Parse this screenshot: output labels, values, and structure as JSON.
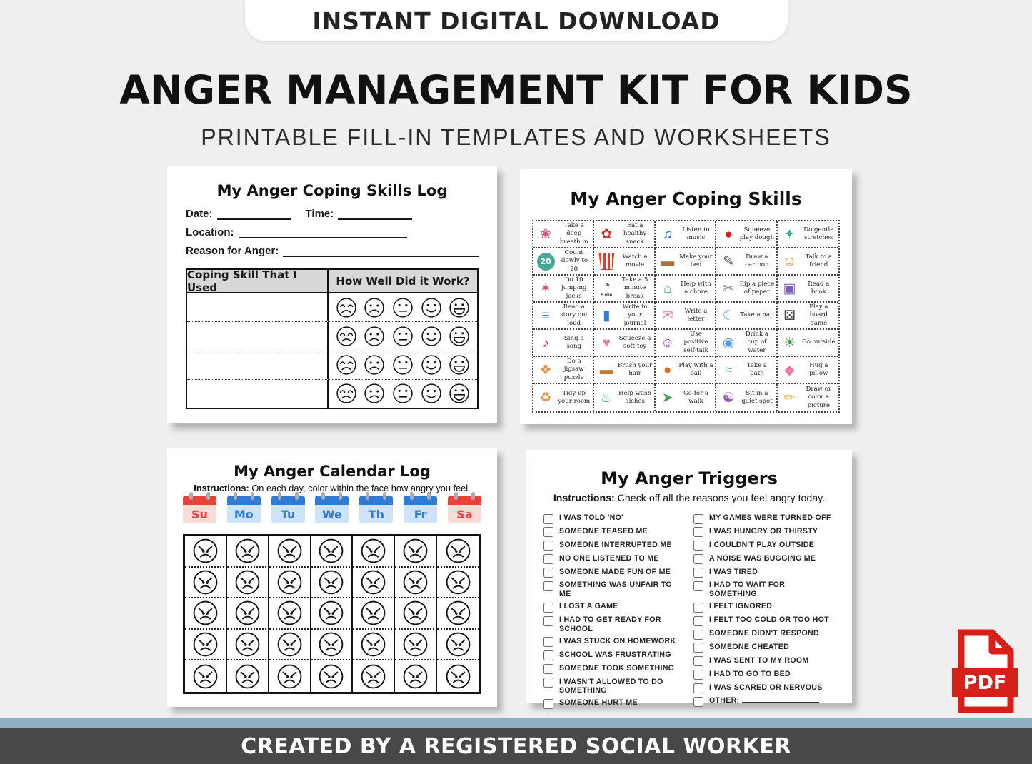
{
  "header": {
    "pill": "INSTANT DIGITAL DOWNLOAD",
    "title": "ANGER MANAGEMENT KIT FOR KIDS",
    "subtitle": "PRINTABLE FILL-IN TEMPLATES AND WORKSHEETS"
  },
  "footer": {
    "text": "CREATED BY A REGISTERED SOCIAL WORKER"
  },
  "pdf_badge": {
    "label": "PDF",
    "icon": "pdf-file-icon"
  },
  "colors": {
    "background": "#efefef",
    "pdf_red": "#d8201a",
    "teal": "#45a894",
    "calendar_red": "#e8423a",
    "calendar_red_light": "#fadbd8",
    "calendar_blue": "#2e7cd6",
    "calendar_blue_light": "#cfe3f8",
    "table_header_gray": "#d8d8d8",
    "footer_bar": "#8fafc4",
    "footer_bg": "#484848"
  },
  "coping_log": {
    "title": "My Anger Coping Skills Log",
    "date_label": "Date:",
    "time_label": "Time:",
    "location_label": "Location:",
    "reason_label": "Reason for Anger:",
    "table": {
      "col1_header": "Coping Skill That I Used",
      "col2_header": "How Well Did it Work?",
      "rows": 4,
      "rating_faces": [
        "worried-face-icon",
        "sad-face-icon",
        "neutral-face-icon",
        "happy-face-icon",
        "big-smile-face-icon"
      ]
    }
  },
  "coping_skills": {
    "title": "My Anger Coping Skills",
    "columns": 5,
    "skills": [
      {
        "label": "Take a deep breath in",
        "icon": "meditating-girl-icon",
        "glyph": "❀",
        "fg": "#d94f7e"
      },
      {
        "label": "Eat a healthy snack",
        "icon": "fruit-snack-icon",
        "glyph": "✿",
        "fg": "#c0392b"
      },
      {
        "label": "Listen to music",
        "icon": "boy-headphones-icon",
        "glyph": "♫",
        "fg": "#2e7cd6"
      },
      {
        "label": "Squeeze play dough",
        "icon": "play-dough-bucket-icon",
        "glyph": "●",
        "fg": "#d8201a"
      },
      {
        "label": "Do gentle stretches",
        "icon": "stretching-kid-icon",
        "glyph": "✦",
        "fg": "#45a894"
      },
      {
        "label": "Count slowly to 20",
        "icon": "number-20-circle-icon",
        "glyph": "20",
        "fg": "#ffffff",
        "special": "badge20"
      },
      {
        "label": "Watch a movie",
        "icon": "popcorn-icon",
        "glyph": "",
        "fg": "#e63b2e",
        "special": "popcorn"
      },
      {
        "label": "Make your bed",
        "icon": "bed-icon",
        "glyph": "▬",
        "fg": "#a9713d"
      },
      {
        "label": "Draw a cartoon",
        "icon": "cartoon-owl-pencil-icon",
        "glyph": "✎",
        "fg": "#555555"
      },
      {
        "label": "Talk to a friend",
        "icon": "two-friends-icon",
        "glyph": "☺",
        "fg": "#e8913d"
      },
      {
        "label": "Do 10 jumping jacks",
        "icon": "jumping-girl-icon",
        "glyph": "✶",
        "fg": "#d94f7e"
      },
      {
        "label": "Take a 5 minute break",
        "icon": "stopwatch-icon",
        "glyph": "◔",
        "fg": "#666666",
        "caption": "5 min"
      },
      {
        "label": "Help with a chore",
        "icon": "vacuuming-kid-icon",
        "glyph": "⌂",
        "fg": "#45a894"
      },
      {
        "label": "Rip a piece of paper",
        "icon": "ripped-paper-icon",
        "glyph": "✂",
        "fg": "#8f8f8f"
      },
      {
        "label": "Read a book",
        "icon": "open-book-icon",
        "glyph": "▣",
        "fg": "#7c5cbf"
      },
      {
        "label": "Read a story out loud",
        "icon": "kids-reading-icon",
        "glyph": "≡",
        "fg": "#2e7cd6"
      },
      {
        "label": "Write in your journal",
        "icon": "blue-journal-icon",
        "glyph": "▮",
        "fg": "#2e7cd6"
      },
      {
        "label": "Write a letter",
        "icon": "envelope-icon",
        "glyph": "✉",
        "fg": "#e87ba0"
      },
      {
        "label": "Take a nap",
        "icon": "sleeping-kid-icon",
        "glyph": "☾",
        "fg": "#5a9bd5"
      },
      {
        "label": "Play a board game",
        "icon": "dice-icon",
        "glyph": "⚄",
        "fg": "#444444"
      },
      {
        "label": "Sing a song",
        "icon": "microphone-icon",
        "glyph": "♪",
        "fg": "#d8201a"
      },
      {
        "label": "Squeeze a soft toy",
        "icon": "plush-toy-girl-icon",
        "glyph": "♥",
        "fg": "#e87ba0"
      },
      {
        "label": "Use positive self-talk",
        "icon": "positive-girl-icon",
        "glyph": "☺",
        "fg": "#9b59b6"
      },
      {
        "label": "Drink a cup of water",
        "icon": "water-glass-icon",
        "glyph": "◉",
        "fg": "#5a9bd5"
      },
      {
        "label": "Go outside",
        "icon": "kids-outside-icon",
        "glyph": "☀",
        "fg": "#4a9e4d"
      },
      {
        "label": "Do a jigsaw puzzle",
        "icon": "puzzle-pieces-icon",
        "glyph": "❖",
        "fg": "#e8913d"
      },
      {
        "label": "Brush your hair",
        "icon": "hairbrush-icon",
        "glyph": "▬",
        "fg": "#c07a30"
      },
      {
        "label": "Play with a ball",
        "icon": "basketball-icon",
        "glyph": "●",
        "fg": "#d96c2c"
      },
      {
        "label": "Take a bath",
        "icon": "bathtub-kid-icon",
        "glyph": "≈",
        "fg": "#45a894"
      },
      {
        "label": "Hug a pillow",
        "icon": "pillows-icon",
        "glyph": "◆",
        "fg": "#e87ba0"
      },
      {
        "label": "Tidy up your room",
        "icon": "tidy-room-kid-icon",
        "glyph": "♻",
        "fg": "#e8913d"
      },
      {
        "label": "Help wash dishes",
        "icon": "dishes-icon",
        "glyph": "♨",
        "fg": "#45a894"
      },
      {
        "label": "Go for a walk",
        "icon": "walking-girl-icon",
        "glyph": "➤",
        "fg": "#4a9e4d"
      },
      {
        "label": "Sit in a quiet spot",
        "icon": "quiet-girl-icon",
        "glyph": "☯",
        "fg": "#9b59b6"
      },
      {
        "label": "Draw or color a picture",
        "icon": "drawing-picture-icon",
        "glyph": "✏",
        "fg": "#e8b73d"
      }
    ]
  },
  "calendar_log": {
    "title": "My Anger Calendar Log",
    "instructions_label": "Instructions:",
    "instructions_text": " On each day, color within the face how angry you feel.",
    "days": [
      {
        "label": "Su",
        "theme": "red"
      },
      {
        "label": "Mo",
        "theme": "blue"
      },
      {
        "label": "Tu",
        "theme": "blue"
      },
      {
        "label": "We",
        "theme": "blue"
      },
      {
        "label": "Th",
        "theme": "blue"
      },
      {
        "label": "Fr",
        "theme": "blue"
      },
      {
        "label": "Sa",
        "theme": "red"
      }
    ],
    "weeks": 5,
    "face": "angry-face-icon"
  },
  "triggers": {
    "title": "My Anger Triggers",
    "instructions_label": "Instructions:",
    "instructions_text": " Check off all the reasons you feel angry today.",
    "left_column": [
      "I WAS TOLD 'NO'",
      "SOMEONE TEASED ME",
      "SOMEONE INTERRUPTED ME",
      "NO ONE LISTENED TO ME",
      "SOMEONE MADE FUN OF ME",
      "SOMETHING WAS UNFAIR TO ME",
      "I LOST A GAME",
      "I HAD TO GET READY FOR SCHOOL",
      "I WAS STUCK ON HOMEWORK",
      "SCHOOL WAS FRUSTRATING",
      "SOMEONE TOOK SOMETHING",
      "I WASN'T ALLOWED TO DO SOMETHING",
      "SOMEONE HURT ME"
    ],
    "right_column": [
      "MY GAMES WERE TURNED OFF",
      "I WAS HUNGRY OR THIRSTY",
      "I COULDN'T PLAY OUTSIDE",
      "A NOISE WAS BUGGING ME",
      "I WAS TIRED",
      "I HAD TO WAIT FOR SOMETHING",
      "I FELT IGNORED",
      "I FELT TOO COLD OR TOO HOT",
      "SOMEONE DIDN'T RESPOND",
      "SOMEONE CHEATED",
      "I WAS SENT TO MY ROOM",
      "I HAD TO GO TO BED",
      "I WAS SCARED OR NERVOUS",
      "OTHER:"
    ]
  }
}
